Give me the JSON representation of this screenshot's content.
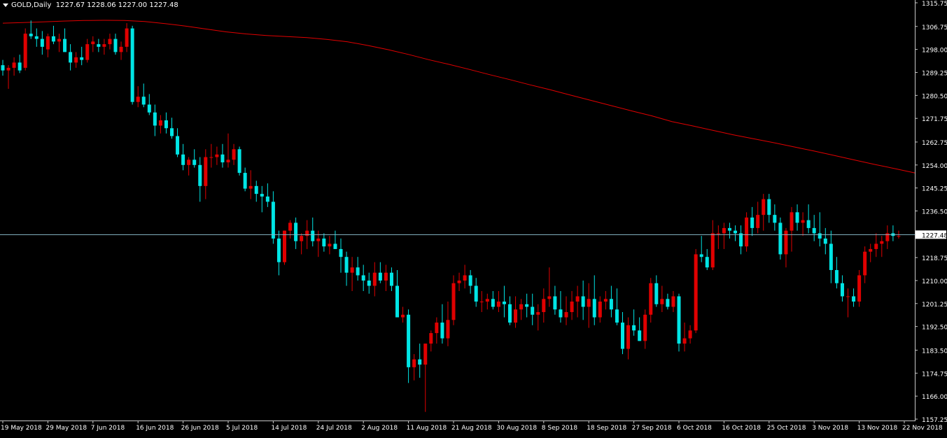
{
  "header": {
    "symbol": "GOLD,Daily",
    "ohlc": "1227.67 1228.06 1227.00 1227.48"
  },
  "colors": {
    "background": "#000000",
    "bull": "#e00000",
    "bear": "#00e5e5",
    "wick_bull": "#e00000",
    "wick_bear": "#00e5e5",
    "ma": "#e00000",
    "price_line": "#87b8c8",
    "axis": "#c8c8c8",
    "text": "#ffffff"
  },
  "chart_data": {
    "type": "candlestick",
    "symbol": "GOLD",
    "timeframe": "Daily",
    "ylim": [
      1157.25,
      1315.75
    ],
    "y_ticks": [
      1315.75,
      1306.75,
      1298.0,
      1289.25,
      1280.5,
      1271.75,
      1262.75,
      1254.0,
      1245.25,
      1236.5,
      1218.75,
      1210.0,
      1201.25,
      1192.5,
      1183.5,
      1174.75,
      1166.0,
      1157.25
    ],
    "y_tick_labels": [
      "1315.75",
      "1306.75",
      "1298.00",
      "1289.25",
      "1280.50",
      "1271.75",
      "1262.75",
      "1254.00",
      "1245.25",
      "1236.50",
      "1218.75",
      "1210.00",
      "1201.25",
      "1192.50",
      "1183.50",
      "1174.75",
      "1166.00",
      "1157.25"
    ],
    "current_price": 1227.48,
    "current_price_label": "1227.48",
    "x_tick_labels": [
      {
        "label": "19 May 2018",
        "index": 0
      },
      {
        "label": "29 May 2018",
        "index": 8
      },
      {
        "label": "7 Jun 2018",
        "index": 16
      },
      {
        "label": "16 Jun 2018",
        "index": 24
      },
      {
        "label": "26 Jun 2018",
        "index": 32
      },
      {
        "label": "5 Jul 2018",
        "index": 40
      },
      {
        "label": "14 Jul 2018",
        "index": 48
      },
      {
        "label": "24 Jul 2018",
        "index": 56
      },
      {
        "label": "2 Aug 2018",
        "index": 64
      },
      {
        "label": "11 Aug 2018",
        "index": 72
      },
      {
        "label": "21 Aug 2018",
        "index": 80
      },
      {
        "label": "30 Aug 2018",
        "index": 88
      },
      {
        "label": "8 Sep 2018",
        "index": 96
      },
      {
        "label": "18 Sep 2018",
        "index": 104
      },
      {
        "label": "27 Sep 2018",
        "index": 112
      },
      {
        "label": "6 Oct 2018",
        "index": 120
      },
      {
        "label": "16 Oct 2018",
        "index": 128
      },
      {
        "label": "25 Oct 2018",
        "index": 136
      },
      {
        "label": "3 Nov 2018",
        "index": 144
      },
      {
        "label": "13 Nov 2018",
        "index": 152
      },
      {
        "label": "22 Nov 2018",
        "index": 160
      }
    ],
    "candles": [
      [
        1292,
        1294,
        1288,
        1290
      ],
      [
        1290,
        1292,
        1283,
        1291
      ],
      [
        1291,
        1295,
        1288,
        1293
      ],
      [
        1293,
        1296,
        1289,
        1290
      ],
      [
        1291,
        1306,
        1290,
        1304
      ],
      [
        1304,
        1309,
        1302,
        1303
      ],
      [
        1303,
        1306,
        1299,
        1302
      ],
      [
        1302,
        1305,
        1296,
        1299
      ],
      [
        1298,
        1304,
        1295,
        1303
      ],
      [
        1303,
        1307,
        1300,
        1301
      ],
      [
        1301,
        1304,
        1297,
        1302
      ],
      [
        1302,
        1306,
        1298,
        1297
      ],
      [
        1297,
        1300,
        1290,
        1293
      ],
      [
        1293,
        1297,
        1291,
        1295
      ],
      [
        1295,
        1299,
        1292,
        1294
      ],
      [
        1294,
        1302,
        1293,
        1300
      ],
      [
        1300,
        1303,
        1297,
        1301
      ],
      [
        1300,
        1302,
        1297,
        1299
      ],
      [
        1299,
        1302,
        1296,
        1300
      ],
      [
        1300,
        1304,
        1298,
        1302
      ],
      [
        1302,
        1304,
        1296,
        1297
      ],
      [
        1297,
        1301,
        1294,
        1299
      ],
      [
        1299,
        1308,
        1297,
        1306
      ],
      [
        1306,
        1307,
        1277,
        1278
      ],
      [
        1278,
        1284,
        1276,
        1280
      ],
      [
        1280,
        1285,
        1276,
        1277
      ],
      [
        1277,
        1281,
        1273,
        1274
      ],
      [
        1274,
        1277,
        1265,
        1269
      ],
      [
        1269,
        1273,
        1266,
        1271
      ],
      [
        1271,
        1274,
        1266,
        1268
      ],
      [
        1268,
        1272,
        1264,
        1265
      ],
      [
        1265,
        1268,
        1257,
        1258
      ],
      [
        1258,
        1262,
        1252,
        1254
      ],
      [
        1254,
        1257,
        1250,
        1256
      ],
      [
        1256,
        1260,
        1253,
        1254
      ],
      [
        1254,
        1257,
        1240,
        1246
      ],
      [
        1246,
        1260,
        1241,
        1257
      ],
      [
        1257,
        1262,
        1253,
        1257
      ],
      [
        1257,
        1261,
        1254,
        1258
      ],
      [
        1258,
        1262,
        1253,
        1255
      ],
      [
        1255,
        1266,
        1253,
        1256
      ],
      [
        1256,
        1262,
        1254,
        1260
      ],
      [
        1260,
        1261,
        1250,
        1251
      ],
      [
        1251,
        1253,
        1244,
        1245
      ],
      [
        1245,
        1252,
        1241,
        1246
      ],
      [
        1246,
        1248,
        1240,
        1243
      ],
      [
        1243,
        1246,
        1236,
        1242
      ],
      [
        1242,
        1247,
        1238,
        1240
      ],
      [
        1240,
        1244,
        1224,
        1226
      ],
      [
        1226,
        1229,
        1212,
        1217
      ],
      [
        1217,
        1229,
        1216,
        1229
      ],
      [
        1229,
        1233,
        1226,
        1232
      ],
      [
        1232,
        1234,
        1222,
        1225
      ],
      [
        1225,
        1228,
        1220,
        1227
      ],
      [
        1227,
        1233,
        1222,
        1229
      ],
      [
        1229,
        1234,
        1223,
        1225
      ],
      [
        1225,
        1229,
        1219,
        1226
      ],
      [
        1226,
        1228,
        1221,
        1223
      ],
      [
        1223,
        1227,
        1220,
        1224
      ],
      [
        1224,
        1229,
        1222,
        1222
      ],
      [
        1222,
        1226,
        1213,
        1219
      ],
      [
        1219,
        1221,
        1208,
        1213
      ],
      [
        1213,
        1219,
        1206,
        1215
      ],
      [
        1215,
        1219,
        1210,
        1212
      ],
      [
        1212,
        1216,
        1206,
        1210
      ],
      [
        1210,
        1213,
        1205,
        1208
      ],
      [
        1208,
        1217,
        1204,
        1213
      ],
      [
        1213,
        1217,
        1209,
        1210
      ],
      [
        1210,
        1216,
        1206,
        1213
      ],
      [
        1213,
        1215,
        1206,
        1208
      ],
      [
        1208,
        1214,
        1197,
        1196
      ],
      [
        1196,
        1200,
        1194,
        1197
      ],
      [
        1197,
        1199,
        1171,
        1177
      ],
      [
        1177,
        1182,
        1172,
        1180
      ],
      [
        1180,
        1186,
        1173,
        1178
      ],
      [
        1178,
        1186,
        1160,
        1186
      ],
      [
        1186,
        1191,
        1183,
        1190
      ],
      [
        1190,
        1196,
        1186,
        1194
      ],
      [
        1194,
        1201,
        1186,
        1188
      ],
      [
        1188,
        1202,
        1185,
        1195
      ],
      [
        1195,
        1212,
        1193,
        1209
      ],
      [
        1209,
        1213,
        1206,
        1210
      ],
      [
        1210,
        1216,
        1207,
        1212
      ],
      [
        1212,
        1214,
        1205,
        1208
      ],
      [
        1208,
        1211,
        1200,
        1202
      ],
      [
        1202,
        1206,
        1198,
        1202
      ],
      [
        1202,
        1205,
        1199,
        1203
      ],
      [
        1203,
        1206,
        1199,
        1200
      ],
      [
        1200,
        1206,
        1198,
        1202
      ],
      [
        1202,
        1208,
        1196,
        1201
      ],
      [
        1201,
        1204,
        1193,
        1194
      ],
      [
        1194,
        1204,
        1192,
        1199
      ],
      [
        1199,
        1203,
        1195,
        1201
      ],
      [
        1201,
        1205,
        1196,
        1200
      ],
      [
        1200,
        1205,
        1193,
        1197
      ],
      [
        1197,
        1201,
        1191,
        1198
      ],
      [
        1198,
        1207,
        1194,
        1203
      ],
      [
        1203,
        1215,
        1200,
        1204
      ],
      [
        1204,
        1208,
        1197,
        1199
      ],
      [
        1199,
        1206,
        1194,
        1196
      ],
      [
        1196,
        1204,
        1193,
        1198
      ],
      [
        1198,
        1206,
        1195,
        1202
      ],
      [
        1202,
        1208,
        1196,
        1204
      ],
      [
        1204,
        1210,
        1195,
        1200
      ],
      [
        1200,
        1209,
        1192,
        1203
      ],
      [
        1203,
        1212,
        1193,
        1196
      ],
      [
        1196,
        1204,
        1194,
        1202
      ],
      [
        1202,
        1206,
        1199,
        1203
      ],
      [
        1203,
        1208,
        1196,
        1199
      ],
      [
        1199,
        1207,
        1193,
        1194
      ],
      [
        1194,
        1198,
        1182,
        1184
      ],
      [
        1184,
        1196,
        1180,
        1193
      ],
      [
        1193,
        1199,
        1189,
        1191
      ],
      [
        1191,
        1196,
        1187,
        1187
      ],
      [
        1187,
        1199,
        1184,
        1197
      ],
      [
        1197,
        1211,
        1194,
        1209
      ],
      [
        1209,
        1212,
        1200,
        1201
      ],
      [
        1201,
        1208,
        1198,
        1203
      ],
      [
        1203,
        1205,
        1199,
        1200
      ],
      [
        1200,
        1206,
        1198,
        1204
      ],
      [
        1204,
        1205,
        1183,
        1186
      ],
      [
        1186,
        1194,
        1183,
        1188
      ],
      [
        1188,
        1193,
        1186,
        1191
      ],
      [
        1191,
        1222,
        1190,
        1220
      ],
      [
        1220,
        1227,
        1217,
        1219
      ],
      [
        1219,
        1222,
        1214,
        1215
      ],
      [
        1215,
        1233,
        1214,
        1228
      ],
      [
        1228,
        1231,
        1222,
        1228
      ],
      [
        1228,
        1232,
        1222,
        1230
      ],
      [
        1230,
        1232,
        1226,
        1229
      ],
      [
        1229,
        1231,
        1225,
        1228
      ],
      [
        1228,
        1231,
        1220,
        1223
      ],
      [
        1223,
        1236,
        1221,
        1234
      ],
      [
        1234,
        1238,
        1227,
        1230
      ],
      [
        1230,
        1240,
        1228,
        1235
      ],
      [
        1235,
        1243,
        1229,
        1241
      ],
      [
        1241,
        1243,
        1232,
        1235
      ],
      [
        1235,
        1239,
        1229,
        1232
      ],
      [
        1232,
        1234,
        1218,
        1220
      ],
      [
        1220,
        1230,
        1215,
        1229
      ],
      [
        1229,
        1238,
        1221,
        1236
      ],
      [
        1236,
        1239,
        1229,
        1232
      ],
      [
        1232,
        1236,
        1227,
        1233
      ],
      [
        1233,
        1239,
        1228,
        1230
      ],
      [
        1230,
        1235,
        1225,
        1228
      ],
      [
        1228,
        1236,
        1223,
        1226
      ],
      [
        1226,
        1230,
        1220,
        1224
      ],
      [
        1224,
        1229,
        1209,
        1214
      ],
      [
        1214,
        1219,
        1207,
        1209
      ],
      [
        1209,
        1212,
        1202,
        1204
      ],
      [
        1204,
        1207,
        1196,
        1204
      ],
      [
        1204,
        1207,
        1200,
        1202
      ],
      [
        1202,
        1214,
        1200,
        1212
      ],
      [
        1212,
        1223,
        1209,
        1221
      ],
      [
        1221,
        1224,
        1217,
        1222
      ],
      [
        1222,
        1228,
        1219,
        1224
      ],
      [
        1224,
        1227,
        1219,
        1225
      ],
      [
        1225,
        1231,
        1222,
        1228
      ],
      [
        1228,
        1231,
        1225,
        1227
      ],
      [
        1227,
        1229,
        1226,
        1227
      ]
    ],
    "ma_values": [
      1308.0,
      1308.2,
      1308.5,
      1308.8,
      1309.0,
      1309.1,
      1309.0,
      1308.6,
      1307.8,
      1306.9,
      1305.8,
      1304.7,
      1303.9,
      1303.3,
      1302.9,
      1302.5,
      1301.8,
      1300.9,
      1299.5,
      1297.9,
      1296.1,
      1294.1,
      1292.3,
      1290.4,
      1288.4,
      1286.5,
      1284.5,
      1282.6,
      1280.6,
      1278.6,
      1276.6,
      1274.6,
      1272.7,
      1270.5,
      1268.9,
      1267.2,
      1265.5,
      1264.0,
      1262.5,
      1260.9,
      1259.3,
      1257.6,
      1255.9,
      1254.2,
      1252.6,
      1250.9
    ],
    "ma_start_index": 0,
    "ma_step": 3.6
  }
}
